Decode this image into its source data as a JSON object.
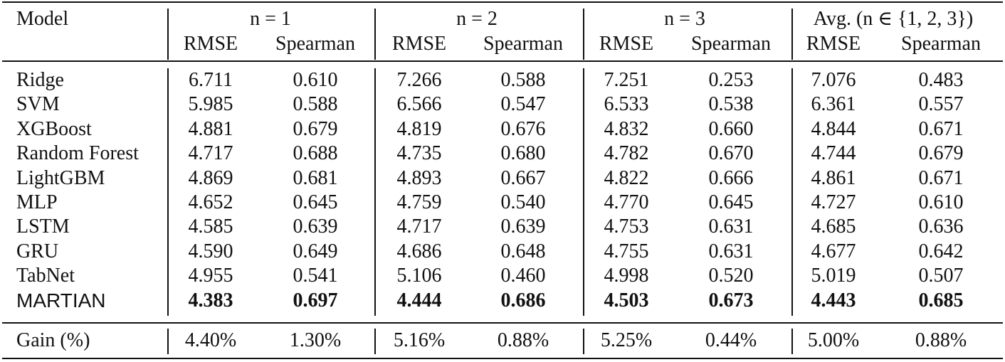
{
  "table": {
    "header": {
      "model": "Model",
      "groups": [
        "n = 1",
        "n = 2",
        "n = 3",
        "Avg. (n ∈ {1, 2, 3})"
      ],
      "subcols": [
        "RMSE",
        "Spearman",
        "RMSE",
        "Spearman",
        "RMSE",
        "Spearman",
        "RMSE",
        "Spearman"
      ]
    },
    "rows": [
      {
        "model": "Ridge",
        "values": [
          "6.711",
          "0.610",
          "7.266",
          "0.588",
          "7.251",
          "0.253",
          "7.076",
          "0.483"
        ]
      },
      {
        "model": "SVM",
        "values": [
          "5.985",
          "0.588",
          "6.566",
          "0.547",
          "6.533",
          "0.538",
          "6.361",
          "0.557"
        ]
      },
      {
        "model": "XGBoost",
        "values": [
          "4.881",
          "0.679",
          "4.819",
          "0.676",
          "4.832",
          "0.660",
          "4.844",
          "0.671"
        ]
      },
      {
        "model": "Random Forest",
        "values": [
          "4.717",
          "0.688",
          "4.735",
          "0.680",
          "4.782",
          "0.670",
          "4.744",
          "0.679"
        ]
      },
      {
        "model": "LightGBM",
        "values": [
          "4.869",
          "0.681",
          "4.893",
          "0.667",
          "4.822",
          "0.666",
          "4.861",
          "0.671"
        ]
      },
      {
        "model": "MLP",
        "values": [
          "4.652",
          "0.645",
          "4.759",
          "0.540",
          "4.770",
          "0.645",
          "4.727",
          "0.610"
        ]
      },
      {
        "model": "LSTM",
        "values": [
          "4.585",
          "0.639",
          "4.717",
          "0.639",
          "4.753",
          "0.631",
          "4.685",
          "0.636"
        ]
      },
      {
        "model": "GRU",
        "values": [
          "4.590",
          "0.649",
          "4.686",
          "0.648",
          "4.755",
          "0.631",
          "4.677",
          "0.642"
        ]
      },
      {
        "model": "TabNet",
        "values": [
          "4.955",
          "0.541",
          "5.106",
          "0.460",
          "4.998",
          "0.520",
          "5.019",
          "0.507"
        ]
      },
      {
        "model": "MARTIAN",
        "values": [
          "4.383",
          "0.697",
          "4.444",
          "0.686",
          "4.503",
          "0.673",
          "4.443",
          "0.685"
        ],
        "highlight": true
      }
    ],
    "gain": {
      "model": "Gain (%)",
      "values": [
        "4.40%",
        "1.30%",
        "5.16%",
        "0.88%",
        "5.25%",
        "0.44%",
        "5.00%",
        "0.88%"
      ]
    }
  }
}
